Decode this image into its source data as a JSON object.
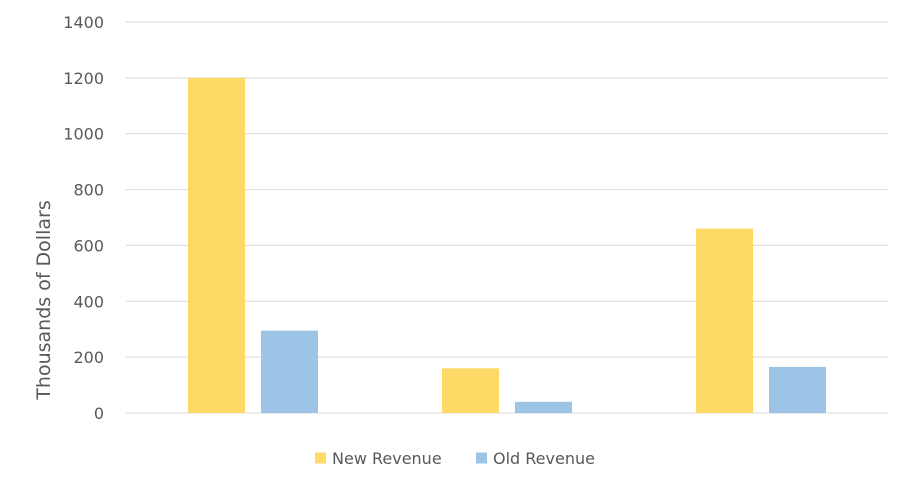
{
  "chart_data": {
    "type": "bar",
    "categories": [
      "",
      "",
      ""
    ],
    "series": [
      {
        "name": "New Revenue",
        "values": [
          1200,
          160,
          660
        ],
        "color": "#FFD966"
      },
      {
        "name": "Old Revenue",
        "values": [
          295,
          40,
          165
        ],
        "color": "#9DC3E6"
      }
    ],
    "title": "",
    "xlabel": "",
    "ylabel": "Thousands of Dollars",
    "ylim": [
      0,
      1400
    ],
    "yticks": [
      0,
      200,
      400,
      600,
      800,
      1000,
      1200,
      1400
    ],
    "grid": true,
    "legend_position": "bottom",
    "colors": {
      "gridline": "#D9D9D9",
      "axis_text": "#595959"
    }
  }
}
